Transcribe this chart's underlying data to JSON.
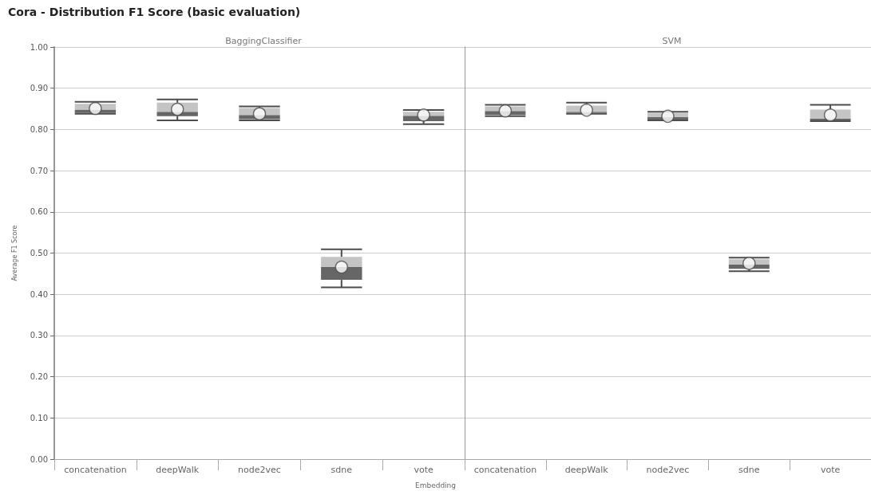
{
  "chart_data": [
    {
      "type": "box",
      "title": "Cora - Distribution F1 Score (basic evaluation)",
      "subtitle": "BaggingClassifier",
      "xlabel": "Embedding",
      "ylabel": "Average F1 Score",
      "categories": [
        "concatenation",
        "deepWalk",
        "node2vec",
        "sdne",
        "vote"
      ],
      "boxes": [
        {
          "low": 0.838,
          "q1": 0.84,
          "median": 0.848,
          "q3": 0.862,
          "high": 0.867,
          "mean": 0.851
        },
        {
          "low": 0.822,
          "q1": 0.832,
          "median": 0.843,
          "q3": 0.865,
          "high": 0.873,
          "mean": 0.849
        },
        {
          "low": 0.822,
          "q1": 0.825,
          "median": 0.835,
          "q3": 0.852,
          "high": 0.856,
          "mean": 0.838
        },
        {
          "low": 0.417,
          "q1": 0.435,
          "median": 0.466,
          "q3": 0.491,
          "high": 0.509,
          "mean": 0.466
        },
        {
          "low": 0.813,
          "q1": 0.82,
          "median": 0.833,
          "q3": 0.843,
          "high": 0.847,
          "mean": 0.835
        }
      ],
      "ylim": [
        0,
        1
      ],
      "yticks": [
        {
          "value": 0,
          "label": "0.00"
        },
        {
          "value": 0.1,
          "label": "0.10"
        },
        {
          "value": 0.2,
          "label": "0.20"
        },
        {
          "value": 0.3,
          "label": "0.30"
        },
        {
          "value": 0.4,
          "label": "0.40"
        },
        {
          "value": 0.5,
          "label": "0.50"
        },
        {
          "value": 0.6,
          "label": "0.60"
        },
        {
          "value": 0.7,
          "label": "0.70"
        },
        {
          "value": 0.8,
          "label": "0.80"
        },
        {
          "value": 0.9,
          "label": "0.90"
        },
        {
          "value": 1,
          "label": "1.00"
        }
      ],
      "grid": "y"
    },
    {
      "type": "box",
      "subtitle": "SVM",
      "categories": [
        "concatenation",
        "deepWalk",
        "node2vec",
        "sdne",
        "vote"
      ],
      "boxes": [
        {
          "low": 0.832,
          "q1": 0.835,
          "median": 0.845,
          "q3": 0.856,
          "high": 0.86,
          "mean": 0.845
        },
        {
          "low": 0.838,
          "q1": 0.84,
          "median": 0.843,
          "q3": 0.858,
          "high": 0.865,
          "mean": 0.847
        },
        {
          "low": 0.822,
          "q1": 0.823,
          "median": 0.83,
          "q3": 0.84,
          "high": 0.843,
          "mean": 0.832
        },
        {
          "low": 0.456,
          "q1": 0.462,
          "median": 0.472,
          "q3": 0.485,
          "high": 0.489,
          "mean": 0.475
        },
        {
          "low": 0.82,
          "q1": 0.822,
          "median": 0.826,
          "q3": 0.848,
          "high": 0.86,
          "mean": 0.835
        }
      ],
      "ylim": [
        0,
        1
      ],
      "yticks": [
        0,
        0.1,
        0.2,
        0.3,
        0.4,
        0.5,
        0.6,
        0.7,
        0.8,
        0.9,
        1
      ],
      "grid": "y",
      "tick_labels": "x"
    }
  ]
}
